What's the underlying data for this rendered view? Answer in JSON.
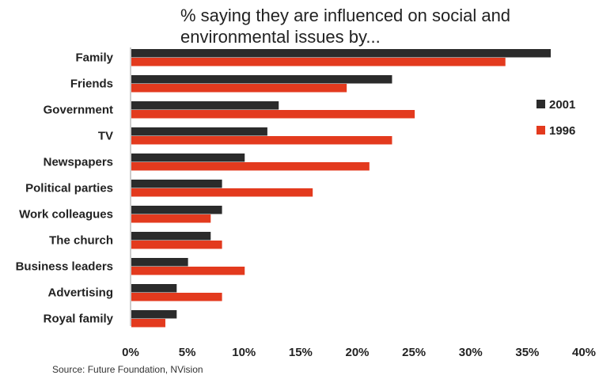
{
  "chart_data": {
    "type": "bar",
    "orientation": "horizontal",
    "title": "% saying they are influenced on social and environmental issues by...",
    "categories": [
      "Family",
      "Friends",
      "Government",
      "TV",
      "Newspapers",
      "Political parties",
      "Work colleagues",
      "The church",
      "Business leaders",
      "Advertising",
      "Royal family"
    ],
    "series": [
      {
        "name": "2001",
        "color": "#2b2b2b",
        "values": [
          37,
          23,
          13,
          12,
          10,
          8,
          8,
          7,
          5,
          4,
          4
        ]
      },
      {
        "name": "1996",
        "color": "#e33a1e",
        "values": [
          33,
          19,
          25,
          23,
          21,
          16,
          7,
          8,
          10,
          8,
          3
        ]
      }
    ],
    "xlim": [
      0,
      40
    ],
    "xticks": [
      0,
      5,
      10,
      15,
      20,
      25,
      30,
      35,
      40
    ],
    "tick_suffix": "%",
    "legend_position": "right",
    "grid": false
  },
  "source": "Source: Future Foundation, NVision"
}
